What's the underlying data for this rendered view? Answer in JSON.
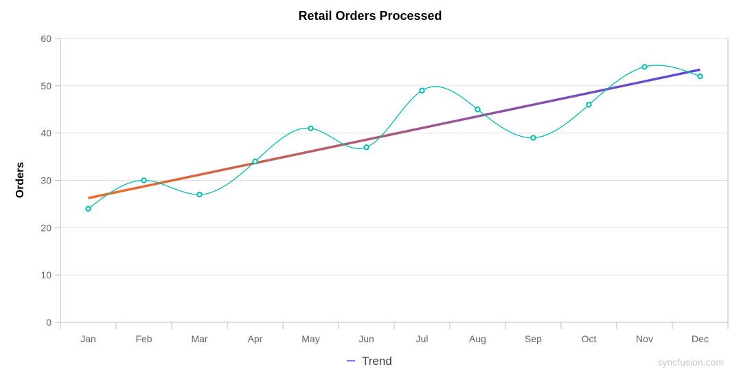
{
  "chart_data": {
    "type": "line",
    "title": "Retail Orders Processed",
    "xlabel": "",
    "ylabel": "Orders",
    "categories": [
      "Jan",
      "Feb",
      "Mar",
      "Apr",
      "May",
      "Jun",
      "Jul",
      "Aug",
      "Sep",
      "Oct",
      "Nov",
      "Dec"
    ],
    "series": [
      {
        "type": "spline",
        "color": "#00bdae",
        "markers": true,
        "values": [
          24,
          30,
          27,
          34,
          41,
          37,
          49,
          45,
          39,
          46,
          54,
          52
        ]
      }
    ],
    "trendline": {
      "name": "Trend",
      "type": "linear",
      "gradient": [
        "#f26d21",
        "#5b48e0"
      ],
      "legend_color": "#7b6ee6"
    },
    "ylim": [
      0,
      60
    ],
    "yticks": [
      0,
      10,
      20,
      30,
      40,
      50,
      60
    ],
    "grid": true,
    "legend": "bottom-center",
    "watermark": "syncfusion.com"
  }
}
